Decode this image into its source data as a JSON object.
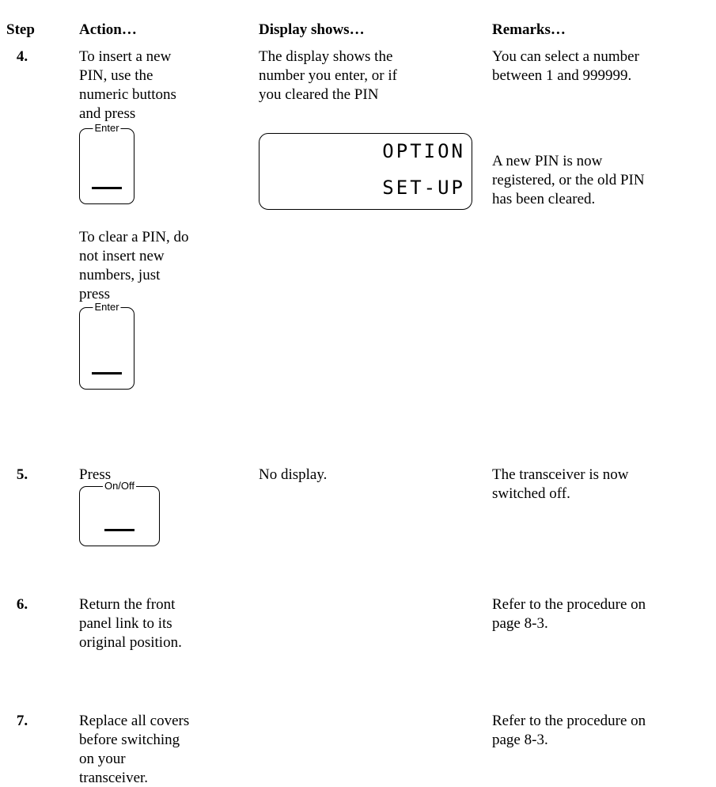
{
  "header": [
    "Step",
    "Action…",
    "Display shows…",
    "Remarks…"
  ],
  "rows": [
    {
      "step": "4.",
      "action": [
        {
          "lines": [
            "To insert a new",
            "PIN, use the",
            "numeric buttons",
            "and press"
          ]
        },
        {
          "button": "Enter"
        },
        {
          "lines": [
            "To clear a PIN, do",
            "not insert new",
            "numbers, just",
            "press"
          ]
        },
        {
          "button": "Enter"
        }
      ],
      "display": {
        "lines": [
          "The display shows the",
          "number you enter, or if",
          "you cleared the PIN"
        ],
        "lcd": [
          "OPTION",
          "SET-UP"
        ]
      },
      "remarks": [
        {
          "lines": [
            "You can select a number",
            "between 1 and 999999."
          ]
        },
        {
          "lines": [
            "A new PIN is now",
            "registered, or the old PIN",
            "has been cleared."
          ]
        }
      ]
    },
    {
      "step": "5.",
      "action": [
        {
          "lines": [
            "Press"
          ]
        },
        {
          "button": "On/Off"
        }
      ],
      "display": {
        "lines": [
          "No display."
        ]
      },
      "remarks": [
        {
          "lines": [
            "The transceiver is now",
            "switched off."
          ]
        }
      ]
    },
    {
      "step": "6.",
      "action": [
        {
          "lines": [
            "Return the front",
            "panel link to its",
            "original position."
          ]
        }
      ],
      "remarks": [
        {
          "lines": [
            "Refer to the procedure on",
            "page 8-3."
          ]
        }
      ]
    },
    {
      "step": "7.",
      "action": [
        {
          "lines": [
            "Replace all covers",
            "before switching",
            "on your",
            "transceiver."
          ]
        }
      ],
      "remarks": [
        {
          "lines": [
            "Refer to the procedure on",
            "page 8-3."
          ]
        }
      ]
    }
  ]
}
